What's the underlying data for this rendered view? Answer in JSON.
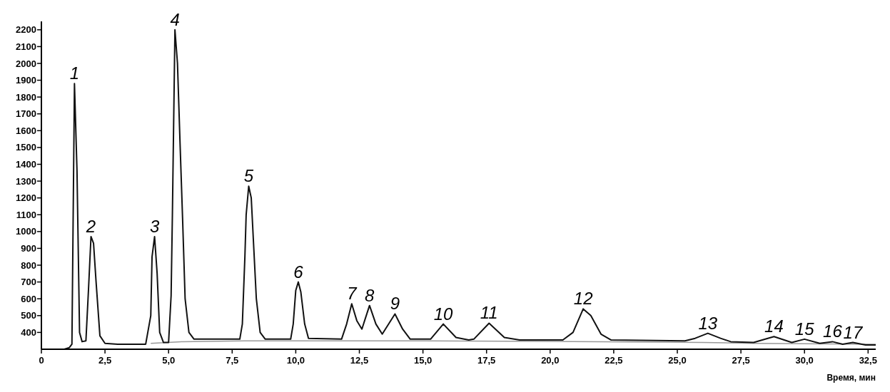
{
  "chart_data": {
    "type": "line",
    "xlabel": "Время, мин",
    "xlim": [
      0,
      32.8
    ],
    "ylim": [
      300,
      2250
    ],
    "xticks": [
      0,
      {
        "value": 2.5,
        "label": "2,5"
      },
      {
        "value": 5,
        "label": "5,0"
      },
      {
        "value": 7.5,
        "label": "7,5"
      },
      {
        "value": 10,
        "label": "10,0"
      },
      {
        "value": 12.5,
        "label": "12,5"
      },
      {
        "value": 15,
        "label": "15,0"
      },
      {
        "value": 17.5,
        "label": "17,5"
      },
      {
        "value": 20,
        "label": "20,0"
      },
      {
        "value": 22.5,
        "label": "22,5"
      },
      {
        "value": 25,
        "label": "25,0"
      },
      {
        "value": 27.5,
        "label": "27,5"
      },
      {
        "value": 30,
        "label": "30,0"
      },
      {
        "value": 32.5,
        "label": "32,5"
      }
    ],
    "yticks": [
      400,
      500,
      600,
      700,
      800,
      900,
      1000,
      1100,
      1200,
      1300,
      1400,
      1500,
      1600,
      1700,
      1800,
      1900,
      2000,
      2100,
      2200
    ],
    "grid": false,
    "marker": "none",
    "line_style": "solid",
    "series": [
      {
        "color": "#999999",
        "x": [
          4.3,
          5.5,
          8,
          15,
          22,
          26,
          28,
          32.8
        ],
        "values": [
          335,
          345,
          350,
          350,
          345,
          340,
          335,
          330
        ]
      },
      {
        "color": "#111111",
        "x": [
          0.9,
          1.1,
          1.2,
          1.3,
          1.4,
          1.5,
          1.6,
          1.75,
          1.85,
          1.95,
          2.05,
          2.15,
          2.3,
          2.5,
          3,
          4.1,
          4.3,
          4.35,
          4.45,
          4.55,
          4.65,
          4.8,
          5.0,
          5.1,
          5.15,
          5.25,
          5.35,
          5.45,
          5.55,
          5.65,
          5.8,
          6.0,
          7.8,
          7.9,
          8.0,
          8.05,
          8.15,
          8.25,
          8.35,
          8.45,
          8.6,
          8.8,
          9.8,
          9.9,
          10.0,
          10.1,
          10.2,
          10.35,
          10.5,
          11.8,
          12.0,
          12.2,
          12.4,
          12.6,
          12.9,
          13.15,
          13.4,
          13.9,
          14.2,
          14.5,
          15.3,
          15.8,
          16.3,
          16.8,
          17.0,
          17.6,
          18.2,
          18.8,
          20.5,
          20.9,
          21.3,
          21.6,
          22.0,
          22.4,
          25.3,
          25.7,
          26.2,
          26.7,
          27.1,
          28.0,
          28.8,
          29.5,
          30.0,
          30.6,
          31.1,
          31.5,
          31.9,
          32.4,
          32.8
        ],
        "values": [
          300,
          310,
          330,
          1880,
          1360,
          400,
          345,
          350,
          650,
          970,
          930,
          700,
          380,
          335,
          330,
          330,
          500,
          850,
          970,
          750,
          400,
          340,
          340,
          620,
          1100,
          2200,
          2000,
          1530,
          1080,
          600,
          400,
          360,
          360,
          450,
          850,
          1100,
          1270,
          1200,
          900,
          600,
          400,
          360,
          360,
          450,
          650,
          700,
          640,
          450,
          365,
          360,
          450,
          570,
          470,
          420,
          560,
          450,
          390,
          510,
          420,
          360,
          360,
          450,
          370,
          355,
          360,
          455,
          370,
          355,
          355,
          400,
          540,
          500,
          390,
          355,
          350,
          365,
          395,
          365,
          345,
          340,
          375,
          340,
          360,
          335,
          345,
          330,
          340,
          325,
          325
        ]
      }
    ],
    "annotations": [
      {
        "text": "1",
        "x": 1.3,
        "y": 1880
      },
      {
        "text": "2",
        "x": 1.95,
        "y": 970
      },
      {
        "text": "3",
        "x": 4.45,
        "y": 970
      },
      {
        "text": "4",
        "x": 5.25,
        "y": 2200
      },
      {
        "text": "5",
        "x": 8.15,
        "y": 1270
      },
      {
        "text": "6",
        "x": 10.1,
        "y": 700
      },
      {
        "text": "7",
        "x": 12.2,
        "y": 570
      },
      {
        "text": "8",
        "x": 12.9,
        "y": 560
      },
      {
        "text": "9",
        "x": 13.9,
        "y": 510
      },
      {
        "text": "10",
        "x": 15.8,
        "y": 450
      },
      {
        "text": "11",
        "x": 17.6,
        "y": 455
      },
      {
        "text": "12",
        "x": 21.3,
        "y": 540
      },
      {
        "text": "13",
        "x": 26.2,
        "y": 395
      },
      {
        "text": "14",
        "x": 28.8,
        "y": 375
      },
      {
        "text": "15",
        "x": 30.0,
        "y": 360
      },
      {
        "text": "16",
        "x": 31.1,
        "y": 345
      },
      {
        "text": "17",
        "x": 31.9,
        "y": 340
      }
    ]
  }
}
